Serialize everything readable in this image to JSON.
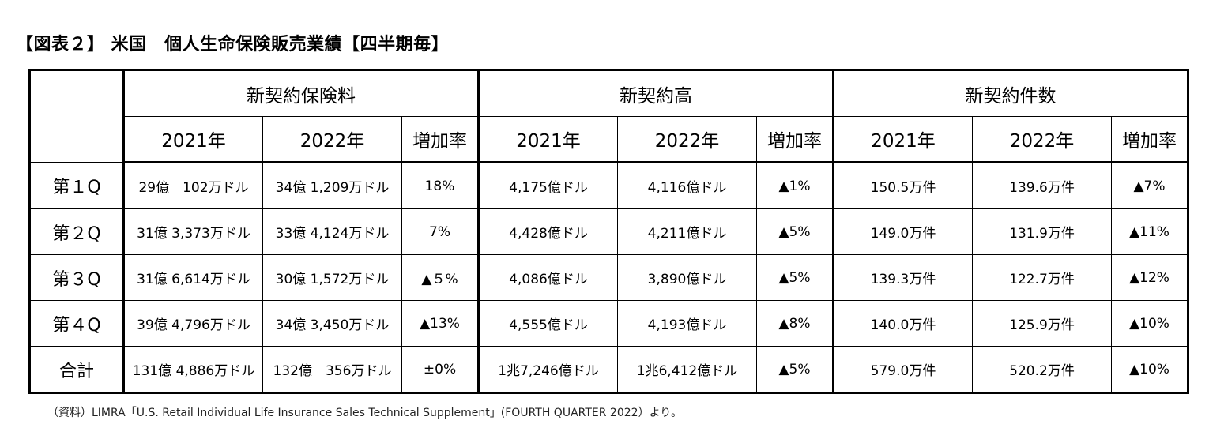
{
  "title": "【図表２】 米国　個人生命保険販売業績【四半期毎】",
  "header": {
    "groups": [
      "新契約保険料",
      "新契約高",
      "新契約件数"
    ],
    "subcols": [
      "2021年",
      "2022年",
      "増加率"
    ]
  },
  "rows": [
    {
      "label": "第１Q",
      "cells": [
        "29億　102万ドル",
        "34億 1,209万ドル",
        "18%",
        "4,175億ドル",
        "4,116億ドル",
        "▲1%",
        "150.5万件",
        "139.6万件",
        "▲7%"
      ]
    },
    {
      "label": "第２Q",
      "cells": [
        "31億 3,373万ドル",
        "33億 4,124万ドル",
        "7%",
        "4,428億ドル",
        "4,211億ドル",
        "▲5%",
        "149.0万件",
        "131.9万件",
        "▲11%"
      ]
    },
    {
      "label": "第３Q",
      "cells": [
        "31億 6,614万ドル",
        "30億 1,572万ドル",
        "▲５%",
        "4,086億ドル",
        "3,890億ドル",
        "▲5%",
        "139.3万件",
        "122.7万件",
        "▲12%"
      ]
    },
    {
      "label": "第４Q",
      "cells": [
        "39億 4,796万ドル",
        "34億 3,450万ドル",
        "▲13%",
        "4,555億ドル",
        "4,193億ドル",
        "▲8%",
        "140.0万件",
        "125.9万件",
        "▲10%"
      ]
    },
    {
      "label": "合計",
      "cells": [
        "131億 4,886万ドル",
        "132億　356万ドル",
        "±0%",
        "1兆7,246億ドル",
        "1兆6,412億ドル",
        "▲5%",
        "579.0万件",
        "520.2万件",
        "▲10%"
      ]
    }
  ],
  "source": "（資料）LIMRA「U.S. Retail Individual Life Insurance Sales Technical Supplement」(FOURTH QUARTER 2022）より。"
}
